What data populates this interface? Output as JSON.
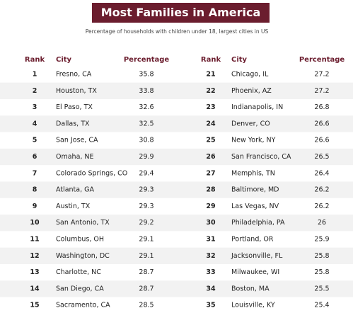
{
  "header": {
    "title": "Most Families in America",
    "subtitle": "Percentage of households with children under 18, largest cities in US"
  },
  "tables": [
    {
      "columns": [
        "Rank",
        "City",
        "Percentage"
      ],
      "rows": [
        [
          1,
          "Fresno, CA",
          35.8
        ],
        [
          2,
          "Houston, TX",
          33.8
        ],
        [
          3,
          "El Paso, TX",
          32.6
        ],
        [
          4,
          "Dallas, TX",
          32.5
        ],
        [
          5,
          "San Jose, CA",
          30.8
        ],
        [
          6,
          "Omaha, NE",
          29.9
        ],
        [
          7,
          "Colorado Springs, CO",
          29.4
        ],
        [
          8,
          "Atlanta, GA",
          29.3
        ],
        [
          9,
          "Austin, TX",
          29.3
        ],
        [
          10,
          "San Antonio, TX",
          29.2
        ],
        [
          11,
          "Columbus, OH",
          29.1
        ],
        [
          12,
          "Washington, DC",
          29.1
        ],
        [
          13,
          "Charlotte, NC",
          28.7
        ],
        [
          14,
          "San Diego, CA",
          28.7
        ],
        [
          15,
          "Sacramento, CA",
          28.5
        ]
      ]
    },
    {
      "columns": [
        "Rank",
        "City",
        "Percentage"
      ],
      "rows": [
        [
          21,
          "Chicago, IL",
          27.2
        ],
        [
          22,
          "Phoenix, AZ",
          27.2
        ],
        [
          23,
          "Indianapolis, IN",
          26.8
        ],
        [
          24,
          "Denver, CO",
          26.6
        ],
        [
          25,
          "New York, NY",
          26.6
        ],
        [
          26,
          "San Francisco, CA",
          26.5
        ],
        [
          27,
          "Memphis, TN",
          26.4
        ],
        [
          28,
          "Baltimore, MD",
          26.2
        ],
        [
          29,
          "Las Vegas, NV",
          26.2
        ],
        [
          30,
          "Philadelphia, PA",
          26
        ],
        [
          31,
          "Portland, OR",
          25.9
        ],
        [
          32,
          "Jacksonville, FL",
          25.8
        ],
        [
          33,
          "Milwaukee, WI",
          25.8
        ],
        [
          34,
          "Boston, MA",
          25.5
        ],
        [
          35,
          "Louisville, KY",
          25.4
        ]
      ]
    }
  ]
}
